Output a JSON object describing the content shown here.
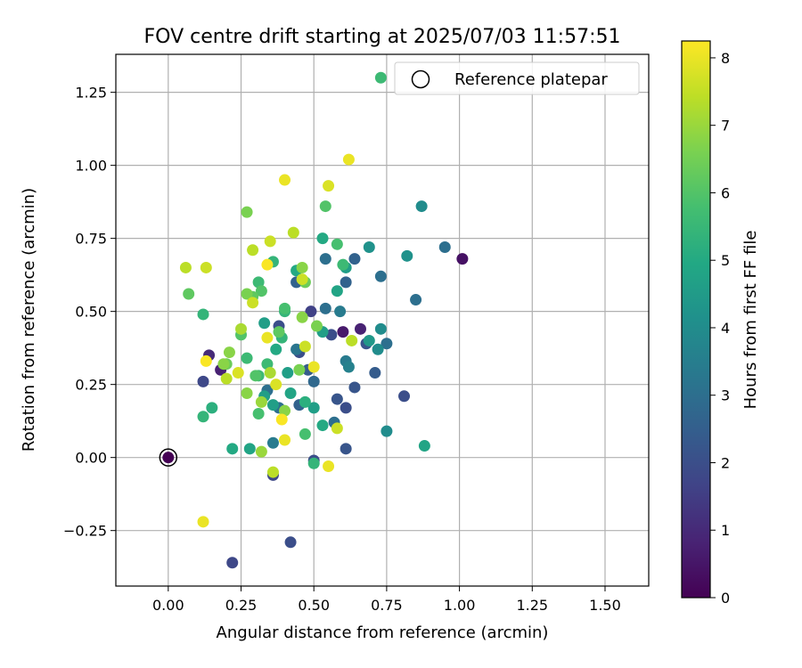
{
  "chart_data": {
    "type": "scatter",
    "title": "FOV centre drift starting at 2025/07/03 11:57:51",
    "xlabel": "Angular distance from reference (arcmin)",
    "ylabel": "Rotation from reference (arcmin)",
    "xlim": [
      -0.18,
      1.65
    ],
    "ylim": [
      -0.44,
      1.38
    ],
    "x_ticks": [
      0.0,
      0.25,
      0.5,
      0.75,
      1.0,
      1.25,
      1.5
    ],
    "x_tick_labels": [
      "0.00",
      "0.25",
      "0.50",
      "0.75",
      "1.00",
      "1.25",
      "1.50"
    ],
    "y_ticks": [
      -0.25,
      0.0,
      0.25,
      0.5,
      0.75,
      1.0,
      1.25
    ],
    "y_tick_labels": [
      "−0.25",
      "0.00",
      "0.25",
      "0.50",
      "0.75",
      "1.00",
      "1.25"
    ],
    "grid": true,
    "legend": {
      "placement": "top-right",
      "label": "Reference platepar"
    },
    "reference_point": {
      "x": 0.0,
      "y": 0.0
    },
    "colorbar": {
      "label": "Hours from first FF file",
      "range": [
        0,
        8.25
      ],
      "ticks": [
        0,
        1,
        2,
        3,
        4,
        5,
        6,
        7,
        8
      ],
      "tick_labels": [
        "0",
        "1",
        "2",
        "3",
        "4",
        "5",
        "6",
        "7",
        "8"
      ],
      "colormap": "viridis"
    },
    "points": [
      [
        0.0,
        0.0,
        0.0
      ],
      [
        0.14,
        0.35,
        1.0
      ],
      [
        0.12,
        0.26,
        1.8
      ],
      [
        0.18,
        0.3,
        0.8
      ],
      [
        0.22,
        -0.36,
        1.8
      ],
      [
        0.42,
        -0.29,
        2.0
      ],
      [
        0.36,
        -0.06,
        1.8
      ],
      [
        0.5,
        -0.01,
        2.0
      ],
      [
        0.61,
        0.03,
        2.2
      ],
      [
        0.81,
        0.21,
        2.0
      ],
      [
        0.64,
        0.24,
        2.2
      ],
      [
        0.58,
        0.2,
        2.2
      ],
      [
        0.61,
        0.17,
        2.0
      ],
      [
        0.57,
        0.12,
        3.0
      ],
      [
        0.6,
        0.43,
        0.6
      ],
      [
        0.56,
        0.42,
        2.0
      ],
      [
        0.66,
        0.44,
        0.8
      ],
      [
        0.68,
        0.39,
        2.2
      ],
      [
        0.75,
        0.39,
        3.0
      ],
      [
        0.71,
        0.29,
        2.4
      ],
      [
        0.61,
        0.33,
        3.4
      ],
      [
        0.62,
        0.31,
        3.6
      ],
      [
        1.01,
        0.68,
        0.4
      ],
      [
        0.95,
        0.72,
        3.0
      ],
      [
        0.85,
        0.54,
        3.0
      ],
      [
        0.73,
        0.62,
        3.0
      ],
      [
        0.64,
        0.68,
        2.6
      ],
      [
        0.61,
        0.6,
        2.6
      ],
      [
        0.54,
        0.68,
        3.0
      ],
      [
        0.54,
        0.51,
        3.0
      ],
      [
        0.59,
        0.5,
        3.4
      ],
      [
        0.49,
        0.5,
        1.6
      ],
      [
        0.44,
        0.6,
        2.6
      ],
      [
        0.45,
        0.36,
        2.0
      ],
      [
        0.45,
        0.18,
        2.6
      ],
      [
        0.5,
        0.26,
        2.8
      ],
      [
        0.48,
        0.3,
        2.4
      ],
      [
        0.38,
        0.45,
        2.0
      ],
      [
        0.38,
        0.17,
        3.0
      ],
      [
        0.34,
        0.23,
        3.0
      ],
      [
        0.36,
        0.05,
        3.4
      ],
      [
        0.44,
        0.37,
        3.2
      ],
      [
        0.87,
        0.86,
        4.0
      ],
      [
        0.82,
        0.69,
        4.2
      ],
      [
        0.88,
        0.04,
        4.8
      ],
      [
        0.75,
        0.09,
        4.0
      ],
      [
        0.73,
        0.44,
        4.0
      ],
      [
        0.72,
        0.37,
        4.0
      ],
      [
        0.69,
        0.4,
        4.4
      ],
      [
        0.69,
        0.72,
        4.2
      ],
      [
        0.61,
        0.65,
        4.6
      ],
      [
        0.58,
        0.57,
        4.8
      ],
      [
        0.53,
        0.43,
        4.6
      ],
      [
        0.5,
        0.17,
        4.6
      ],
      [
        0.53,
        0.11,
        5.0
      ],
      [
        0.5,
        -0.02,
        5.4
      ],
      [
        0.41,
        0.29,
        4.6
      ],
      [
        0.42,
        0.22,
        4.8
      ],
      [
        0.36,
        0.18,
        4.6
      ],
      [
        0.33,
        0.46,
        4.6
      ],
      [
        0.37,
        0.37,
        5.0
      ],
      [
        0.33,
        0.21,
        4.6
      ],
      [
        0.28,
        0.03,
        4.8
      ],
      [
        0.22,
        0.03,
        5.0
      ],
      [
        0.15,
        0.17,
        5.2
      ],
      [
        0.12,
        0.14,
        5.4
      ],
      [
        0.44,
        0.64,
        5.0
      ],
      [
        0.53,
        0.75,
        5.0
      ],
      [
        0.58,
        0.73,
        5.8
      ],
      [
        0.6,
        0.66,
        5.6
      ],
      [
        0.4,
        0.5,
        5.4
      ],
      [
        0.39,
        0.41,
        5.4
      ],
      [
        0.4,
        0.51,
        5.8
      ],
      [
        0.31,
        0.6,
        5.6
      ],
      [
        0.36,
        0.67,
        5.4
      ],
      [
        0.47,
        0.19,
        5.2
      ],
      [
        0.47,
        0.08,
        5.8
      ],
      [
        0.31,
        0.15,
        5.8
      ],
      [
        0.31,
        0.28,
        5.6
      ],
      [
        0.34,
        0.32,
        5.6
      ],
      [
        0.27,
        0.34,
        5.6
      ],
      [
        0.2,
        0.32,
        6.4
      ],
      [
        0.12,
        0.49,
        5.4
      ],
      [
        0.07,
        0.56,
        6.2
      ],
      [
        0.25,
        0.42,
        6.0
      ],
      [
        0.27,
        0.22,
        6.8
      ],
      [
        0.3,
        0.28,
        6.0
      ],
      [
        0.32,
        0.57,
        6.0
      ],
      [
        0.29,
        0.55,
        6.2
      ],
      [
        0.27,
        0.56,
        6.6
      ],
      [
        0.38,
        0.43,
        6.2
      ],
      [
        0.4,
        0.16,
        6.8
      ],
      [
        0.45,
        0.3,
        6.6
      ],
      [
        0.51,
        0.45,
        6.6
      ],
      [
        0.54,
        0.86,
        6.0
      ],
      [
        0.27,
        0.84,
        6.6
      ],
      [
        0.46,
        0.65,
        6.8
      ],
      [
        0.47,
        0.6,
        6.4
      ],
      [
        0.46,
        0.48,
        6.8
      ],
      [
        0.63,
        0.4,
        7.4
      ],
      [
        0.47,
        0.38,
        7.6
      ],
      [
        0.35,
        0.29,
        7.2
      ],
      [
        0.32,
        0.19,
        7.0
      ],
      [
        0.19,
        0.32,
        6.8
      ],
      [
        0.21,
        0.36,
        6.8
      ],
      [
        0.25,
        0.44,
        7.2
      ],
      [
        0.29,
        0.71,
        7.4
      ],
      [
        0.35,
        0.74,
        7.6
      ],
      [
        0.43,
        0.77,
        7.4
      ],
      [
        0.46,
        0.61,
        7.6
      ],
      [
        0.06,
        0.65,
        7.4
      ],
      [
        0.13,
        0.65,
        7.6
      ],
      [
        0.29,
        0.53,
        7.6
      ],
      [
        0.55,
        0.93,
        7.8
      ],
      [
        0.4,
        0.95,
        8.0
      ],
      [
        0.62,
        1.02,
        8.0
      ],
      [
        0.34,
        0.66,
        8.2
      ],
      [
        0.34,
        0.41,
        8.0
      ],
      [
        0.37,
        0.25,
        7.8
      ],
      [
        0.5,
        0.31,
        8.0
      ],
      [
        0.13,
        0.33,
        8.2
      ],
      [
        0.2,
        0.27,
        7.4
      ],
      [
        0.24,
        0.29,
        7.8
      ],
      [
        0.32,
        0.02,
        7.0
      ],
      [
        0.36,
        -0.05,
        7.4
      ],
      [
        0.4,
        0.06,
        8.0
      ],
      [
        0.39,
        0.13,
        8.2
      ],
      [
        0.55,
        -0.03,
        8.0
      ],
      [
        0.58,
        0.1,
        7.6
      ],
      [
        0.12,
        -0.22,
        8.0
      ],
      [
        0.73,
        1.3,
        5.6
      ]
    ]
  }
}
